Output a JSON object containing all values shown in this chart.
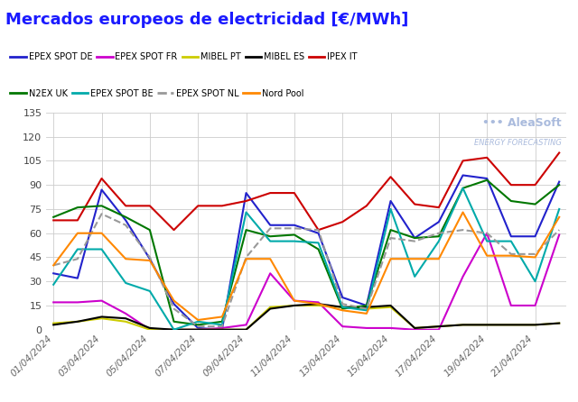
{
  "title": "Mercados europeos de electricidad [€/MWh]",
  "title_color": "#1a1aff",
  "background_color": "#ffffff",
  "grid_color": "#cccccc",
  "dates": [
    "01/04/2024",
    "02/04/2024",
    "03/04/2024",
    "04/04/2024",
    "05/04/2024",
    "06/04/2024",
    "07/04/2024",
    "08/04/2024",
    "09/04/2024",
    "10/04/2024",
    "11/04/2024",
    "12/04/2024",
    "13/04/2024",
    "14/04/2024",
    "15/04/2024",
    "16/04/2024",
    "17/04/2024",
    "18/04/2024",
    "19/04/2024",
    "20/04/2024",
    "21/04/2024",
    "22/04/2024"
  ],
  "series": [
    {
      "label": "EPEX SPOT DE",
      "color": "#2222cc",
      "linewidth": 1.5,
      "linestyle": "-",
      "data": [
        35,
        32,
        87,
        68,
        44,
        16,
        1,
        0,
        85,
        65,
        65,
        60,
        20,
        15,
        80,
        57,
        67,
        96,
        94,
        58,
        58,
        92
      ]
    },
    {
      "label": "EPEX SPOT FR",
      "color": "#cc00cc",
      "linewidth": 1.5,
      "linestyle": "-",
      "data": [
        17,
        17,
        18,
        10,
        0,
        0,
        0,
        1,
        3,
        35,
        18,
        17,
        2,
        1,
        1,
        0,
        0,
        33,
        60,
        15,
        15,
        59
      ]
    },
    {
      "label": "MIBEL PT",
      "color": "#cccc00",
      "linewidth": 1.5,
      "linestyle": "-",
      "data": [
        4,
        5,
        7,
        5,
        0,
        0,
        0,
        0,
        0,
        14,
        15,
        15,
        14,
        13,
        14,
        1,
        2,
        3,
        3,
        3,
        3,
        4
      ]
    },
    {
      "label": "MIBEL ES",
      "color": "#000000",
      "linewidth": 1.5,
      "linestyle": "-",
      "data": [
        3,
        5,
        8,
        7,
        1,
        0,
        0,
        0,
        0,
        13,
        15,
        16,
        14,
        14,
        15,
        1,
        2,
        3,
        3,
        3,
        3,
        4
      ]
    },
    {
      "label": "IPEX IT",
      "color": "#cc0000",
      "linewidth": 1.5,
      "linestyle": "-",
      "data": [
        68,
        68,
        94,
        77,
        77,
        62,
        77,
        77,
        80,
        85,
        85,
        62,
        67,
        77,
        95,
        78,
        76,
        105,
        107,
        90,
        90,
        110
      ]
    },
    {
      "label": "N2EX UK",
      "color": "#007700",
      "linewidth": 1.5,
      "linestyle": "-",
      "data": [
        70,
        76,
        77,
        70,
        62,
        5,
        3,
        5,
        62,
        58,
        59,
        50,
        13,
        15,
        62,
        57,
        58,
        88,
        93,
        80,
        78,
        90
      ]
    },
    {
      "label": "EPEX SPOT BE",
      "color": "#00aaaa",
      "linewidth": 1.5,
      "linestyle": "-",
      "data": [
        28,
        50,
        50,
        29,
        24,
        0,
        5,
        3,
        73,
        55,
        55,
        54,
        14,
        12,
        75,
        33,
        55,
        88,
        55,
        55,
        30,
        75
      ]
    },
    {
      "label": "EPEX SPOT NL",
      "color": "#999999",
      "linewidth": 1.5,
      "linestyle": "--",
      "data": [
        40,
        44,
        72,
        65,
        45,
        13,
        2,
        2,
        45,
        63,
        63,
        62,
        16,
        13,
        57,
        55,
        60,
        62,
        60,
        47,
        47,
        62
      ]
    },
    {
      "label": "Nord Pool",
      "color": "#ff8800",
      "linewidth": 1.5,
      "linestyle": "-",
      "data": [
        40,
        60,
        60,
        44,
        43,
        18,
        6,
        8,
        44,
        44,
        18,
        16,
        12,
        10,
        44,
        44,
        44,
        73,
        46,
        46,
        45,
        70
      ]
    }
  ],
  "ylim": [
    0,
    135
  ],
  "yticks": [
    0,
    15,
    30,
    45,
    60,
    75,
    90,
    105,
    120,
    135
  ],
  "xtick_labels": [
    "01/04/2024",
    "03/04/2024",
    "05/04/2024",
    "07/04/2024",
    "09/04/2024",
    "11/04/2024",
    "13/04/2024",
    "15/04/2024",
    "17/04/2024",
    "19/04/2024",
    "21/04/2024"
  ],
  "watermark_line1": "••• AleaSoft",
  "watermark_line2": "ENERGY FORECASTING"
}
